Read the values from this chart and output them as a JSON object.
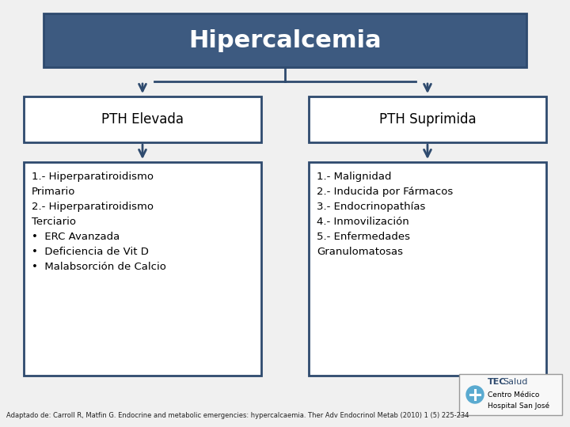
{
  "title": "Hipercalcemia",
  "title_bg": "#3d5a80",
  "title_color": "#ffffff",
  "box_border_color": "#2e4a6e",
  "box_bg": "#ffffff",
  "arrow_color": "#2e4a6e",
  "left_label": "PTH Elevada",
  "right_label": "PTH Suprimida",
  "left_content": "1.- Hiperparatiroidismo\nPrimario\n2.- Hiperparatiroidismo\nTerciario\n•  ERC Avanzada\n•  Deficiencia de Vit D\n•  Malabsorción de Calcio",
  "right_content": "1.- Malignidad\n2.- Inducida por Fármacos\n3.- Endocrinopathías\n4.- Inmovilización\n5.- Enfermedades\nGranulomatosas",
  "footnote": "Adaptado de: Carroll R, Matfin G. Endocrine and metabolic emergencies: hypercalcaemia. Ther Adv Endocrinol Metab (2010) 1 (5) 225-234",
  "footnote_fontsize": 6.0,
  "bg_color": "#f0f0f0",
  "title_fontsize": 22,
  "label_fontsize": 12,
  "content_fontsize": 9.5
}
